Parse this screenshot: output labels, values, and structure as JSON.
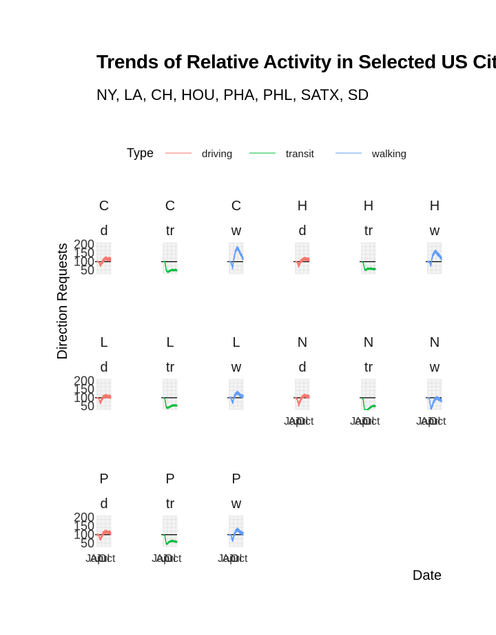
{
  "title": "Trends of Relative Activity in Selected US Cities",
  "subtitle": "NY, LA, CH, HOU, PHA, PHL, SATX, SD",
  "chart_data": {
    "type": "line",
    "title": "Trends of Relative Activity in Selected US Cities",
    "subtitle": "NY, LA, CH, HOU, PHA, PHL, SATX, SD",
    "xlabel": "Date",
    "ylabel": "Direction Requests",
    "legend": {
      "title": "Type",
      "position": "top",
      "entries": [
        "driving",
        "transit",
        "walking"
      ]
    },
    "series_colors": {
      "driving": "#F8766D",
      "transit": "#00BA38",
      "walking": "#619CFF"
    },
    "x_ticks": [
      "Jan",
      "Apr",
      "Jul",
      "Oct"
    ],
    "y_ticks": [
      50,
      100,
      150,
      200
    ],
    "y_tick_labels": [
      "50",
      "100",
      "150",
      "200"
    ],
    "ylim": [
      30,
      210
    ],
    "baseline": 100,
    "grid": true,
    "facets": [
      {
        "city": "C",
        "type": "d",
        "series": "driving",
        "profile": [
          100,
          98,
          80,
          92,
          108,
          116,
          120,
          110,
          118,
          112
        ]
      },
      {
        "city": "C",
        "type": "tr",
        "series": "transit",
        "profile": [
          100,
          102,
          48,
          40,
          45,
          50,
          52,
          50,
          52,
          50
        ]
      },
      {
        "city": "C",
        "type": "w",
        "series": "walking",
        "profile": [
          100,
          98,
          65,
          120,
          160,
          180,
          170,
          150,
          135,
          115
        ]
      },
      {
        "city": "H",
        "type": "d",
        "series": "driving",
        "profile": [
          100,
          97,
          75,
          95,
          108,
          112,
          118,
          112,
          115,
          110
        ]
      },
      {
        "city": "H",
        "type": "tr",
        "series": "transit",
        "profile": [
          100,
          95,
          55,
          52,
          60,
          58,
          60,
          57,
          58,
          56
        ]
      },
      {
        "city": "H",
        "type": "w",
        "series": "walking",
        "profile": [
          100,
          98,
          80,
          130,
          150,
          160,
          150,
          140,
          130,
          118
        ]
      },
      {
        "city": "L",
        "type": "d",
        "series": "driving",
        "profile": [
          100,
          96,
          70,
          90,
          105,
          108,
          112,
          105,
          108,
          104
        ]
      },
      {
        "city": "L",
        "type": "tr",
        "series": "transit",
        "profile": [
          100,
          96,
          42,
          40,
          45,
          50,
          54,
          55,
          54,
          54
        ]
      },
      {
        "city": "L",
        "type": "w",
        "series": "walking",
        "profile": [
          100,
          98,
          70,
          100,
          120,
          130,
          125,
          115,
          110,
          108
        ]
      },
      {
        "city": "N",
        "type": "d",
        "series": "driving",
        "profile": [
          100,
          95,
          60,
          80,
          100,
          108,
          115,
          105,
          110,
          102
        ]
      },
      {
        "city": "N",
        "type": "tr",
        "series": "transit",
        "profile": [
          100,
          90,
          18,
          20,
          30,
          38,
          45,
          50,
          52,
          50
        ]
      },
      {
        "city": "N",
        "type": "w",
        "series": "walking",
        "profile": [
          100,
          96,
          35,
          55,
          80,
          95,
          100,
          92,
          90,
          82
        ]
      },
      {
        "city": "P",
        "type": "d",
        "series": "driving",
        "profile": [
          100,
          98,
          72,
          90,
          108,
          115,
          118,
          110,
          115,
          108
        ]
      },
      {
        "city": "P",
        "type": "tr",
        "series": "transit",
        "profile": [
          100,
          95,
          45,
          50,
          60,
          62,
          64,
          62,
          60,
          58
        ]
      },
      {
        "city": "P",
        "type": "w",
        "series": "walking",
        "profile": [
          100,
          98,
          65,
          95,
          118,
          130,
          125,
          115,
          110,
          105
        ]
      }
    ]
  }
}
